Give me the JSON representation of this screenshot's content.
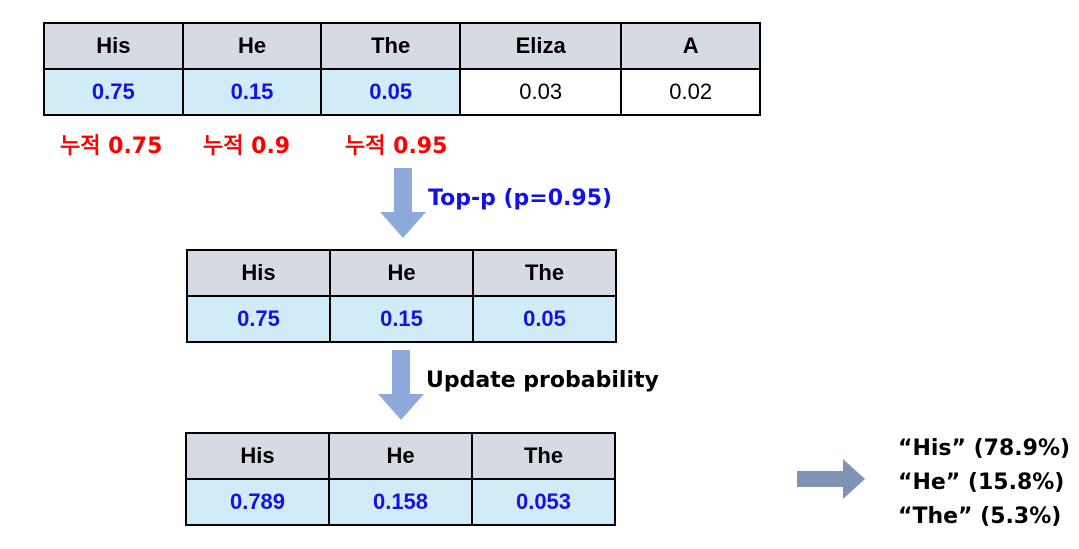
{
  "table1": {
    "headers": [
      "His",
      "He",
      "The",
      "Eliza",
      "A"
    ],
    "values": [
      "0.75",
      "0.15",
      "0.05",
      "0.03",
      "0.02"
    ]
  },
  "cumulative": [
    "누적 0.75",
    "누적 0.9",
    "누적 0.95"
  ],
  "step1_label": "Top-p (p=0.95)",
  "table2": {
    "headers": [
      "His",
      "He",
      "The"
    ],
    "values": [
      "0.75",
      "0.15",
      "0.05"
    ]
  },
  "step2_label": "Update probability",
  "table3": {
    "headers": [
      "His",
      "He",
      "The"
    ],
    "values": [
      "0.789",
      "0.158",
      "0.053"
    ]
  },
  "result": [
    "“His”  (78.9%)",
    "“He”  (15.8%)",
    "“The”  (5.3%)"
  ],
  "colors": {
    "header_fill": "#d6dae3",
    "selected_fill": "#d2ecf7",
    "selected_text": "#1212e8",
    "cumulative_text": "#ff0000",
    "step1_text": "#1212e8",
    "arrow_down": "#8eaadb",
    "arrow_right": "#7f93b4"
  }
}
